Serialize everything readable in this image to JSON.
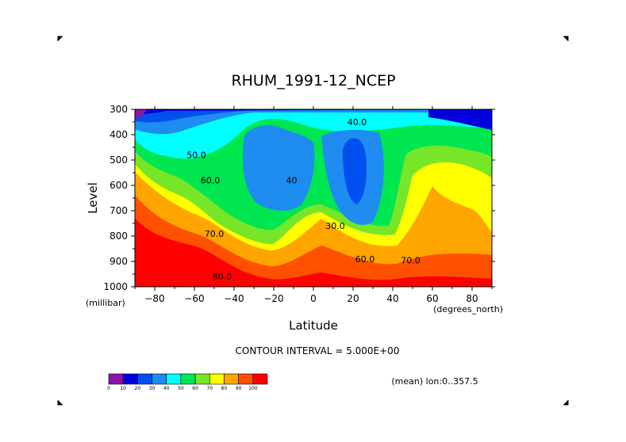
{
  "chart_data": {
    "type": "heatmap",
    "title": "RHUM_1991-12_NCEP",
    "xlabel": "Latitude",
    "ylabel": "Level",
    "x_unit": "(degrees_north)",
    "y_unit": "(millibar)",
    "xlim": [
      -90,
      90
    ],
    "ylim": [
      1000,
      300
    ],
    "x_ticks": [
      -80,
      -60,
      -40,
      -20,
      0,
      20,
      40,
      60,
      80
    ],
    "x_tick_labels": [
      "−80",
      "−60",
      "−40",
      "−20",
      "0",
      "20",
      "40",
      "60",
      "80"
    ],
    "y_ticks": [
      300,
      400,
      500,
      600,
      700,
      800,
      900,
      1000
    ],
    "y_tick_labels": [
      "300",
      "400",
      "500",
      "600",
      "700",
      "800",
      "900",
      "1000"
    ],
    "contour_interval_text": "CONTOUR INTERVAL = 5.000E+00",
    "mean_text": "(mean) lon:0..357.5",
    "contour_labels": [
      {
        "text": "40.0",
        "x": 22,
        "y": 350
      },
      {
        "text": "50.0",
        "x": -59,
        "y": 480
      },
      {
        "text": "40",
        "x": -11,
        "y": 580
      },
      {
        "text": "60.0",
        "x": -52,
        "y": 580
      },
      {
        "text": "30.0",
        "x": 11,
        "y": 760
      },
      {
        "text": "70.0",
        "x": -50,
        "y": 790
      },
      {
        "text": "60.0",
        "x": 26,
        "y": 890
      },
      {
        "text": "70.0",
        "x": 49,
        "y": 895
      },
      {
        "text": "80.0",
        "x": -46,
        "y": 960
      }
    ],
    "colorbar": {
      "levels": [
        "0",
        "10",
        "20",
        "30",
        "40",
        "50",
        "60",
        "70",
        "80",
        "90",
        "100"
      ],
      "colors": [
        "#8c14a8",
        "#0000dc",
        "#0050f0",
        "#1e8cf0",
        "#00ffff",
        "#00e650",
        "#78e628",
        "#ffff00",
        "#ffa500",
        "#ff5000",
        "#ff0000"
      ]
    }
  }
}
